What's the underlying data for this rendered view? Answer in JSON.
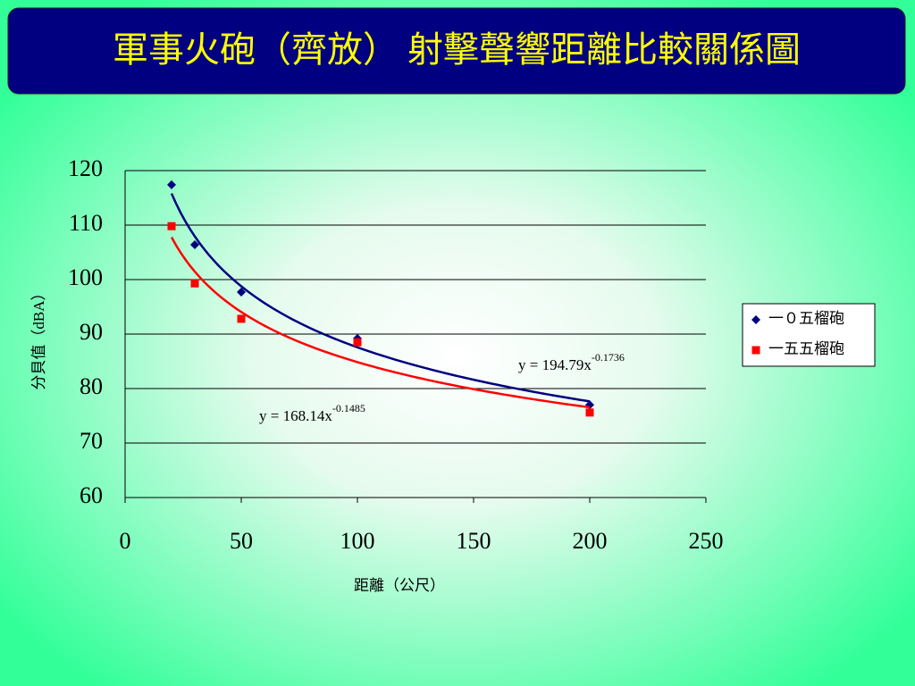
{
  "chart_data": {
    "type": "scatter",
    "title": "軍事火砲（齊放） 射擊聲響距離比較關係圖",
    "x_label": "距離（公尺）",
    "y_label": "分貝值（dBA）",
    "xlim": [
      0,
      250
    ],
    "xticks": [
      0,
      50,
      100,
      150,
      200,
      250
    ],
    "ylim": [
      60,
      120
    ],
    "yticks": [
      60,
      70,
      80,
      90,
      100,
      110,
      120
    ],
    "grid": true,
    "legend": "right",
    "series": [
      {
        "name": "一０五榴砲",
        "color": "#000080",
        "marker": "diamond",
        "line_color": "#000080",
        "x": [
          20,
          30,
          50,
          100,
          200
        ],
        "values": [
          117.4,
          106.4,
          97.7,
          89.2,
          77.0
        ],
        "trendline": {
          "label": "y = 194.79x",
          "exponent_label": "-0.1736",
          "a": 194.79,
          "b": -0.1736
        }
      },
      {
        "name": "一五五榴砲",
        "color": "#ff0000",
        "marker": "square",
        "line_color": "#ff0000",
        "x": [
          20,
          30,
          50,
          100,
          200
        ],
        "values": [
          109.8,
          99.3,
          92.8,
          88.5,
          75.6
        ],
        "trendline": {
          "label": "y = 168.14x",
          "exponent_label": "-0.1485",
          "a": 168.14,
          "b": -0.1485
        }
      }
    ]
  }
}
